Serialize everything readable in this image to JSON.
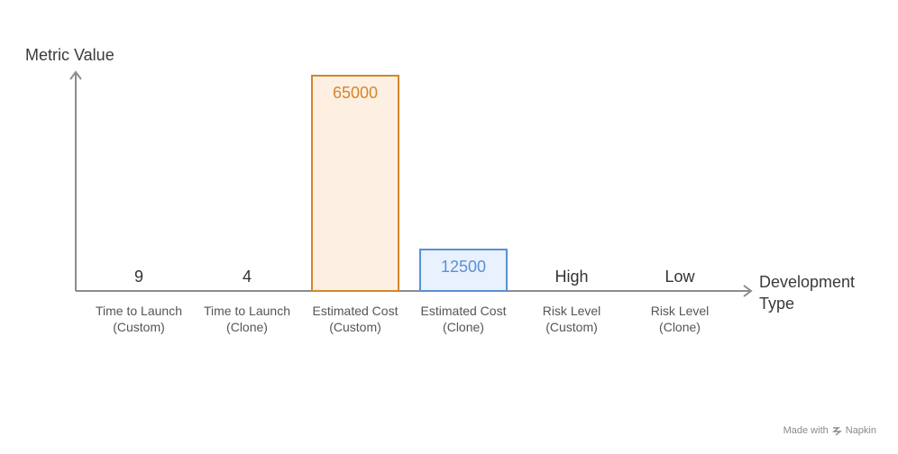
{
  "chart_data": {
    "type": "bar",
    "ylabel": "Metric Value",
    "xlabel_lines": [
      "Development",
      "Type"
    ],
    "categories": [
      [
        "Time to Launch",
        "(Custom)"
      ],
      [
        "Time to Launch",
        "(Clone)"
      ],
      [
        "Estimated Cost",
        "(Custom)"
      ],
      [
        "Estimated Cost",
        "(Clone)"
      ],
      [
        "Risk Level",
        "(Custom)"
      ],
      [
        "Risk Level",
        "(Clone)"
      ]
    ],
    "values": [
      9,
      4,
      65000,
      12500,
      null,
      null
    ],
    "value_labels": [
      "9",
      "4",
      "65000",
      "12500",
      "High",
      "Low"
    ],
    "colors": {
      "custom_stroke": "#d4862b",
      "custom_fill": "#fdf0e3",
      "custom_text": "#d4862b",
      "clone_stroke": "#5b8fd6",
      "clone_fill": "#e9f1fc",
      "clone_text": "#5b8fd6",
      "plain_text": "#333333",
      "axis": "#8c8c8c"
    },
    "grid": false,
    "legend": "none"
  },
  "footer": {
    "made_with": "Made with",
    "brand": "Napkin"
  }
}
